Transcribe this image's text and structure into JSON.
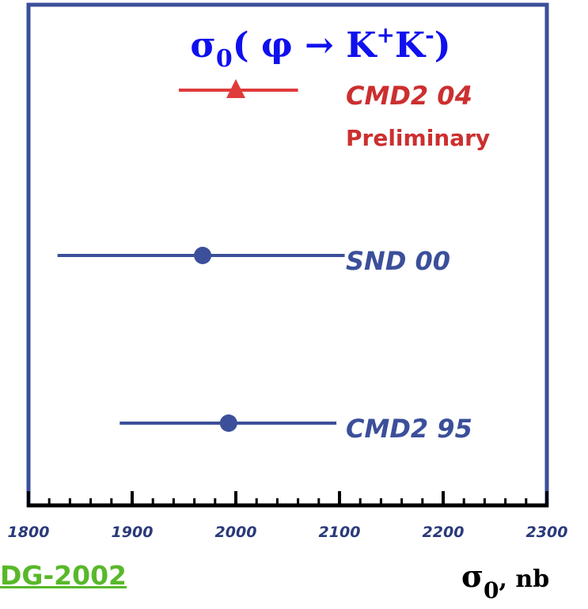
{
  "chart_data": {
    "type": "scatter",
    "title": {
      "sigma": "σ",
      "sub": "0",
      "open": "( ",
      "phi": "φ",
      "arrow": " → ",
      "k1": "K",
      "plus": "+",
      "k2": "K",
      "minus": "-",
      "close": ")"
    },
    "xlabel": {
      "sigma": "σ",
      "sub": "0",
      "rest": ", nb"
    },
    "xlim": [
      1800,
      2300
    ],
    "ticks": [
      "1800",
      "1900",
      "2000",
      "2100",
      "2200",
      "2300"
    ],
    "tick_values": [
      1800,
      1900,
      2000,
      2100,
      2200,
      2300
    ],
    "measurements": [
      {
        "label": "CMD2 04",
        "sublabel": "Preliminary",
        "value": 2000,
        "low": 1945,
        "high": 2060,
        "marker": "triangle",
        "color": "#e03a3a",
        "label_color": "#cc2f2f"
      },
      {
        "label": "SND 00",
        "value": 1968,
        "low": 1828,
        "high": 2105,
        "marker": "circle",
        "color": "#3b4f9a",
        "label_color": "#3b4f9a"
      },
      {
        "label": "CMD2 95",
        "value": 1993,
        "low": 1888,
        "high": 2097,
        "marker": "circle",
        "color": "#3b4f9a",
        "label_color": "#3b4f9a"
      }
    ],
    "frame_color": "#3b4f9a"
  },
  "footer": {
    "pdg_label": "DG-2002"
  }
}
